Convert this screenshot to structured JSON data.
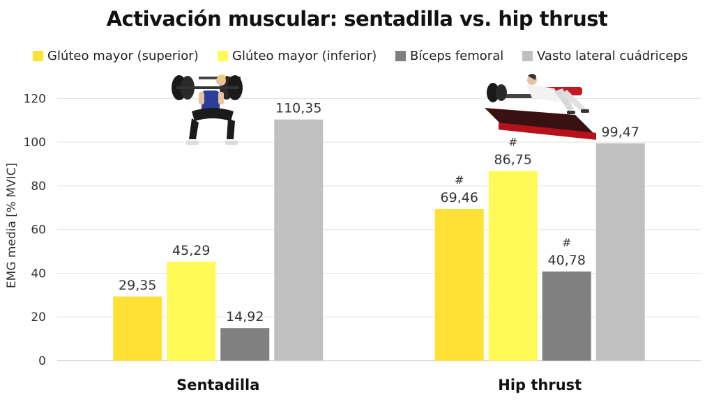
{
  "chart_data": {
    "type": "bar",
    "title": "Activación muscular: sentadilla vs. hip thrust",
    "ylabel": "EMG media [% MVIC]",
    "xlabel": "",
    "ylim": [
      0,
      130
    ],
    "yticks": [
      0,
      20,
      40,
      60,
      80,
      100,
      120
    ],
    "grid": true,
    "legend_position": "top",
    "categories": [
      "Sentadilla",
      "Hip thrust"
    ],
    "series": [
      {
        "name": "Glúteo mayor (superior)",
        "color": "#FFE135",
        "values": [
          29.35,
          69.46
        ],
        "labels": [
          "29,35",
          "69,46"
        ],
        "markers": [
          "",
          "#"
        ]
      },
      {
        "name": "Glúteo mayor (inferior)",
        "color": "#FFFA55",
        "values": [
          45.29,
          86.75
        ],
        "labels": [
          "45,29",
          "86,75"
        ],
        "markers": [
          "",
          "#"
        ]
      },
      {
        "name": "Bíceps femoral",
        "color": "#808080",
        "values": [
          14.92,
          40.78
        ],
        "labels": [
          "14,92",
          "40,78"
        ],
        "markers": [
          "",
          "#"
        ]
      },
      {
        "name": "Vasto lateral cuádriceps",
        "color": "#C0C0C0",
        "values": [
          110.35,
          99.47
        ],
        "labels": [
          "110,35",
          "99,47"
        ],
        "markers": [
          "",
          ""
        ]
      }
    ]
  }
}
